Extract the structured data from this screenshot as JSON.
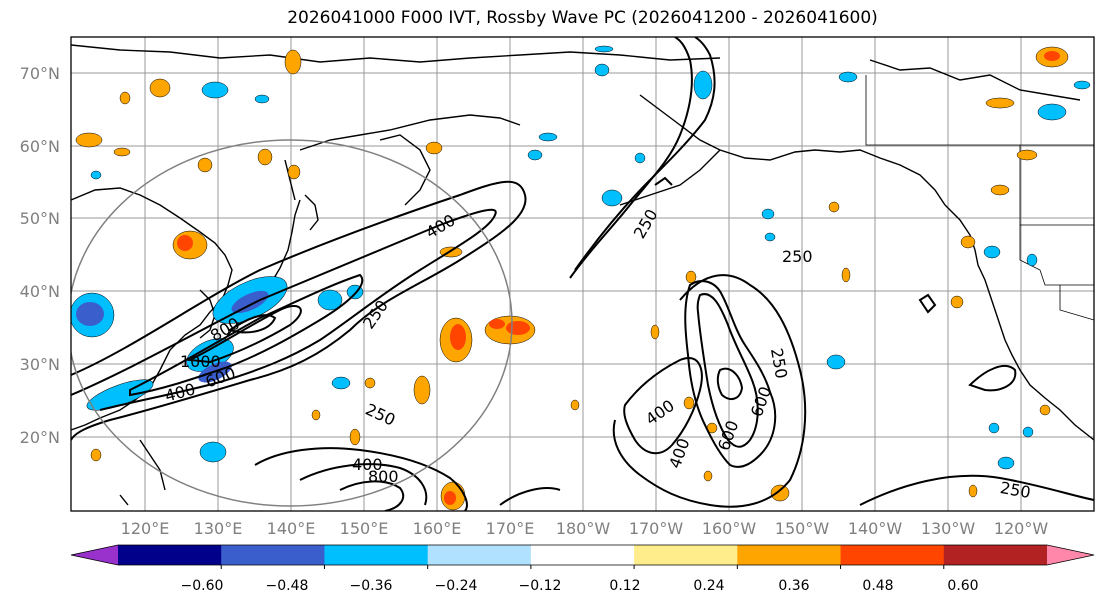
{
  "title": "2026041000 F000 IVT, Rossby Wave PC (2026041200 - 2026041600)",
  "map": {
    "lat_labels": [
      "70°N",
      "60°N",
      "50°N",
      "40°N",
      "30°N",
      "20°N"
    ],
    "lon_labels": [
      "120°E",
      "130°E",
      "140°E",
      "150°E",
      "160°E",
      "170°E",
      "180°W",
      "170°W",
      "160°W",
      "150°W",
      "140°W",
      "130°W",
      "120°W"
    ],
    "contour_labels": [
      "400",
      "250",
      "250",
      "250",
      "1000",
      "600",
      "800",
      "400",
      "250",
      "400",
      "400",
      "800",
      "600",
      "250",
      "400",
      "600",
      "250"
    ],
    "colors": {
      "frame": "#000000",
      "grid": "#808080",
      "circle": "#808080"
    }
  },
  "colorbar": {
    "ticks": [
      "−0.60",
      "−0.48",
      "−0.36",
      "−0.24",
      "−0.12",
      "0.12",
      "0.24",
      "0.36",
      "0.48",
      "0.60"
    ],
    "colors": [
      "#9932cc",
      "#00008b",
      "#3a5fcd",
      "#00bfff",
      "#b0e2ff",
      "#ffffff",
      "#ffec8b",
      "#ffa500",
      "#ff4500",
      "#b22222",
      "#ff88aa"
    ]
  }
}
